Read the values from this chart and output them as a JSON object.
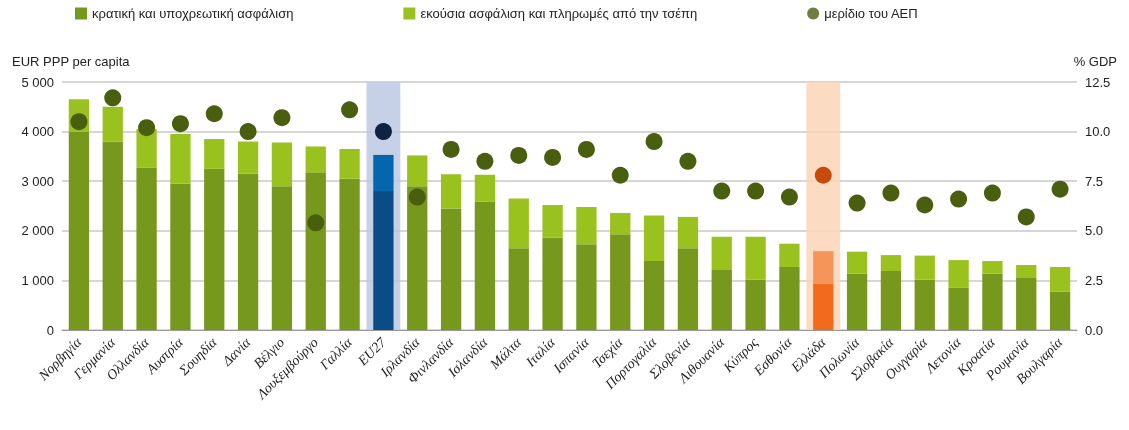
{
  "chart_data": {
    "type": "bar",
    "stacked": true,
    "ylabel": "EUR PPP per capita",
    "y2label": "% GDP",
    "categories": [
      "Νορβηγία",
      "Γερμανία",
      "Ολλανδία",
      "Αυστρία",
      "Σουηδία",
      "Δανία",
      "Βέλγιο",
      "Λουξεμβούργο",
      "Γαλλία",
      "EU27",
      "Ιρλανδία",
      "Φινλανδία",
      "Ισλανδία",
      "Μάλτα",
      "Ιταλία",
      "Ισπανία",
      "Τσεχία",
      "Πορτογαλία",
      "Σλοβενία",
      "Λιθουανία",
      "Κύπρος",
      "Εσθονία",
      "Ελλάδα",
      "Πολωνία",
      "Σλοβακία",
      "Ουγγαρία",
      "Λετονία",
      "Κροατία",
      "Ρουμανία",
      "Βουλγαρία"
    ],
    "series": [
      {
        "name": "κρατική και υποχρεωτική ασφάλιση",
        "color": "#76981c",
        "colors": [
          "#76981c",
          "#76981c",
          "#76981c",
          "#76981c",
          "#76981c",
          "#76981c",
          "#76981c",
          "#76981c",
          "#76981c",
          "#0a4c86",
          "#76981c",
          "#76981c",
          "#76981c",
          "#76981c",
          "#76981c",
          "#76981c",
          "#76981c",
          "#76981c",
          "#76981c",
          "#76981c",
          "#76981c",
          "#76981c",
          "#f26a1b",
          "#76981c",
          "#76981c",
          "#76981c",
          "#76981c",
          "#76981c",
          "#76981c",
          "#76981c"
        ],
        "values": [
          4000,
          3800,
          3270,
          2950,
          3250,
          3150,
          2900,
          3180,
          3050,
          2800,
          2900,
          2450,
          2590,
          1650,
          1860,
          1730,
          1930,
          1390,
          1650,
          1210,
          1020,
          1270,
          930,
          1140,
          1190,
          1020,
          850,
          1140,
          1050,
          770
        ]
      },
      {
        "name": "εκούσια ασφάλιση και πληρωμές από την τσέπη",
        "color": "#99c21e",
        "colors": [
          "#99c21e",
          "#99c21e",
          "#99c21e",
          "#99c21e",
          "#99c21e",
          "#99c21e",
          "#99c21e",
          "#99c21e",
          "#99c21e",
          "#0565ae",
          "#99c21e",
          "#99c21e",
          "#99c21e",
          "#99c21e",
          "#99c21e",
          "#99c21e",
          "#99c21e",
          "#99c21e",
          "#99c21e",
          "#99c21e",
          "#99c21e",
          "#99c21e",
          "#f5955a",
          "#99c21e",
          "#99c21e",
          "#99c21e",
          "#99c21e",
          "#99c21e",
          "#99c21e",
          "#99c21e"
        ],
        "values": [
          650,
          700,
          780,
          1000,
          600,
          650,
          880,
          520,
          600,
          730,
          620,
          690,
          540,
          1000,
          660,
          750,
          430,
          920,
          630,
          670,
          860,
          470,
          660,
          440,
          320,
          480,
          560,
          250,
          260,
          500
        ]
      },
      {
        "name": "μερίδιο του ΑΕΠ",
        "type": "scatter",
        "axis": "y2",
        "marker": "circle",
        "color": "#4a5e10",
        "colors": [
          "#4a5e10",
          "#4a5e10",
          "#4a5e10",
          "#4a5e10",
          "#4a5e10",
          "#4a5e10",
          "#4a5e10",
          "#4a5e10",
          "#4a5e10",
          "#0d2340",
          "#4a5e10",
          "#4a5e10",
          "#4a5e10",
          "#4a5e10",
          "#4a5e10",
          "#4a5e10",
          "#4a5e10",
          "#4a5e10",
          "#4a5e10",
          "#4a5e10",
          "#4a5e10",
          "#4a5e10",
          "#c74a0c",
          "#4a5e10",
          "#4a5e10",
          "#4a5e10",
          "#4a5e10",
          "#4a5e10",
          "#4a5e10",
          "#4a5e10"
        ],
        "values": [
          10.5,
          11.7,
          10.2,
          10.4,
          10.9,
          10.0,
          10.7,
          5.4,
          11.1,
          10.0,
          6.7,
          9.1,
          8.5,
          8.8,
          8.7,
          9.1,
          7.8,
          9.5,
          8.5,
          7.0,
          7.0,
          6.7,
          7.8,
          6.4,
          6.9,
          6.3,
          6.6,
          6.9,
          5.7,
          7.1
        ]
      }
    ],
    "ylim": [
      0,
      5000
    ],
    "yticks": [
      0,
      {
        "value": 1000,
        "label": "1 000"
      },
      {
        "value": 2000,
        "label": "2 000"
      },
      {
        "value": 3000,
        "label": "3 000"
      },
      {
        "value": 4000,
        "label": "4 000"
      },
      {
        "value": 5000,
        "label": "5 000"
      }
    ],
    "y2lim": [
      0,
      12.5
    ],
    "y2ticks": [
      {
        "value": 0,
        "label": "0.0"
      },
      2.5,
      {
        "value": 5,
        "label": "5.0"
      },
      7.5,
      {
        "value": 10,
        "label": "10.0"
      },
      12.5
    ],
    "bands": [
      {
        "axis": "x",
        "from": "EU27",
        "to": "EU27",
        "color": "#bcc8e2"
      },
      {
        "axis": "x",
        "from": "Ελλάδα",
        "to": "Ελλάδα",
        "color": "#fbd5b8"
      }
    ],
    "grid": "y",
    "legend": "top"
  }
}
